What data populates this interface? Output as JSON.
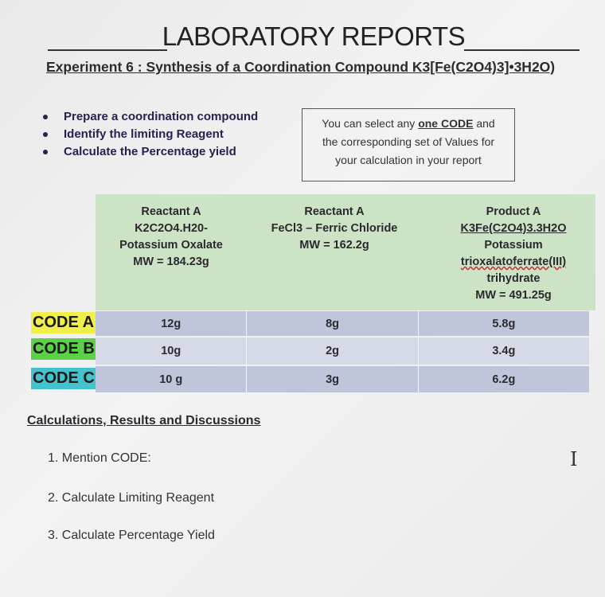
{
  "title": "LABORATORY REPORTS",
  "subtitle": "Experiment 6 : Synthesis of a Coordination Compound  K3[Fe(C2O4)3]•3H2O)",
  "bullets": [
    "Prepare a coordination compound",
    "Identify the limiting Reagent",
    "Calculate the Percentage yield"
  ],
  "note": {
    "line1_pre": "You can select any ",
    "line1_em": "one CODE",
    "line1_post": " and",
    "line2": "the corresponding set of Values for",
    "line3": "your calculation in your report"
  },
  "table": {
    "col1": [
      "Reactant A",
      "K2C2O4.H20-",
      "Potassium Oxalate",
      "MW = 184.23g"
    ],
    "col2": [
      "Reactant A",
      "FeCl3 – Ferric Chloride",
      "MW = 162.2g"
    ],
    "col3": [
      "Product A",
      "K3Fe(C2O4)3.3H2O",
      "Potassium",
      "trioxalatoferrate(III)",
      "trihydrate",
      "MW = 491.25g"
    ],
    "rows": [
      {
        "code": "CODE A",
        "values": [
          "12g",
          "8g",
          "5.8g"
        ]
      },
      {
        "code": "CODE B",
        "values": [
          "10g",
          "2g",
          "3.4g"
        ]
      },
      {
        "code": "CODE C",
        "values": [
          "10 g",
          "3g",
          "6.2g"
        ]
      }
    ],
    "code_colors": [
      "#f1f04a",
      "#5bd148",
      "#44c3cc"
    ],
    "header_bg": "#cde3c6"
  },
  "section_title": "Calculations, Results and Discussions",
  "tasks": [
    "1.  Mention CODE:",
    "2.  Calculate Limiting Reagent",
    "3.  Calculate Percentage Yield"
  ],
  "cursor_icon": "text-cursor-icon"
}
